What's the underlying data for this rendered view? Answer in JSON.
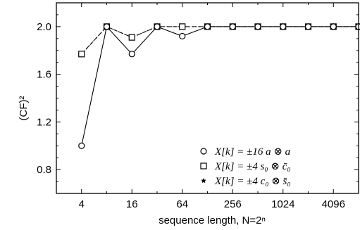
{
  "chart_data": {
    "type": "line",
    "xlabel": "sequence length, N=2ⁿ",
    "ylabel": "(CF)²",
    "x_scale": "log2",
    "xlim": [
      2,
      8192
    ],
    "ylim": [
      0.6,
      2.2
    ],
    "x_ticks": [
      4,
      16,
      64,
      256,
      1024,
      4096
    ],
    "x_tick_labels": [
      "4",
      "16",
      "64",
      "256",
      "1024",
      "4096"
    ],
    "y_ticks": [
      0.8,
      1.2,
      1.6,
      2.0
    ],
    "y_tick_labels": [
      "0.8",
      "1.2",
      "1.6",
      "2.0"
    ],
    "grid": false,
    "legend_position": "bottom-right",
    "series": [
      {
        "name": "X[k] = ±16 a ⊗ a",
        "marker": "circle",
        "line_style": "solid",
        "x": [
          4,
          8,
          16,
          32,
          64,
          128,
          256,
          512,
          1024,
          2048,
          4096,
          8192
        ],
        "y": [
          1.0,
          2.0,
          1.77,
          2.0,
          1.92,
          2.0,
          2.0,
          2.0,
          2.0,
          2.0,
          2.0,
          2.0
        ]
      },
      {
        "name": "X[k] = ±4 s₀ ⊗ c̄₀",
        "marker": "square",
        "line_style": "dashed",
        "x": [
          4,
          8,
          16,
          32,
          64,
          128,
          256,
          512,
          1024,
          2048,
          4096,
          8192
        ],
        "y": [
          1.77,
          2.0,
          1.91,
          2.0,
          2.0,
          2.0,
          2.0,
          2.0,
          2.0,
          2.0,
          2.0,
          2.0
        ]
      },
      {
        "name": "X[k] = ±4 c₀ ⊗ s̄₀",
        "marker": "star",
        "line_style": "dotted",
        "x": [
          4,
          8,
          16,
          32,
          64,
          128,
          256,
          512,
          1024,
          2048,
          4096,
          8192
        ],
        "y": [
          1.77,
          2.0,
          1.91,
          2.0,
          2.0,
          2.0,
          2.0,
          2.0,
          2.0,
          2.0,
          2.0,
          2.0
        ]
      }
    ]
  }
}
